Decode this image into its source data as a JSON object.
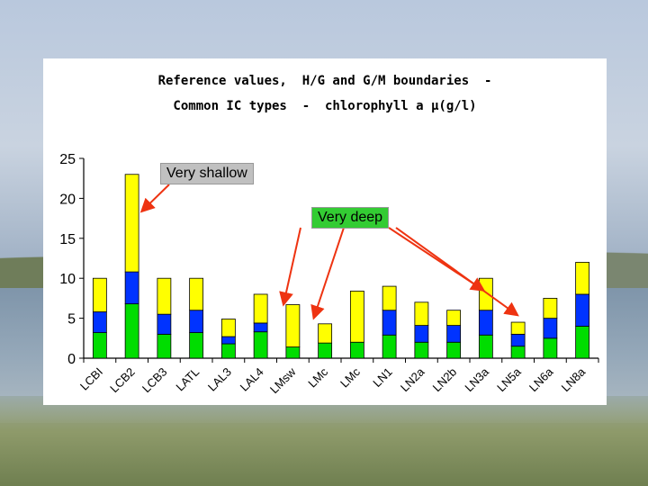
{
  "chart_data": {
    "type": "bar",
    "stacked": true,
    "title_line1": "Reference values,  H/G and G/M boundaries  -",
    "title_line2": "Common IC types  -  chlorophyll a µ(g/l)",
    "categories": [
      "LCBI",
      "LCB2",
      "LCB3",
      "LATL",
      "LAL3",
      "LAL4",
      "LMsw",
      "LMc",
      "LMc",
      "LN1",
      "LN2a",
      "LN2b",
      "LN3a",
      "LN5a",
      "LN6a",
      "LN8a"
    ],
    "ylim": [
      0,
      25
    ],
    "yticks": [
      "0",
      "5",
      "10",
      "15",
      "20",
      "25"
    ],
    "series": [
      {
        "color": "#00dd00",
        "values": [
          3.2,
          6.8,
          3.0,
          3.2,
          1.8,
          3.3,
          1.4,
          1.9,
          2.0,
          2.9,
          2.0,
          2.0,
          2.9,
          1.5,
          2.5,
          4.0
        ]
      },
      {
        "color": "#0033ff",
        "values": [
          2.6,
          4.0,
          2.5,
          2.8,
          0.9,
          1.1,
          0.0,
          0.0,
          0.0,
          3.1,
          2.1,
          2.1,
          3.1,
          1.5,
          2.5,
          4.0
        ]
      },
      {
        "color": "#ffff00",
        "values": [
          4.2,
          12.2,
          4.5,
          4.0,
          2.2,
          3.6,
          5.3,
          2.4,
          6.4,
          3.0,
          2.9,
          1.9,
          4.0,
          1.5,
          2.5,
          4.0
        ]
      }
    ],
    "annotations": [
      {
        "text": "Very shallow",
        "background": "#c0c0c0",
        "points_to": [
          "LCB2"
        ]
      },
      {
        "text": "Very deep",
        "background": "#33cc33",
        "points_to": [
          "LMsw",
          "LMc",
          "LN3a",
          "LN5a"
        ]
      }
    ],
    "arrow_color": "#ee3311",
    "grid": false,
    "legend": "none"
  }
}
